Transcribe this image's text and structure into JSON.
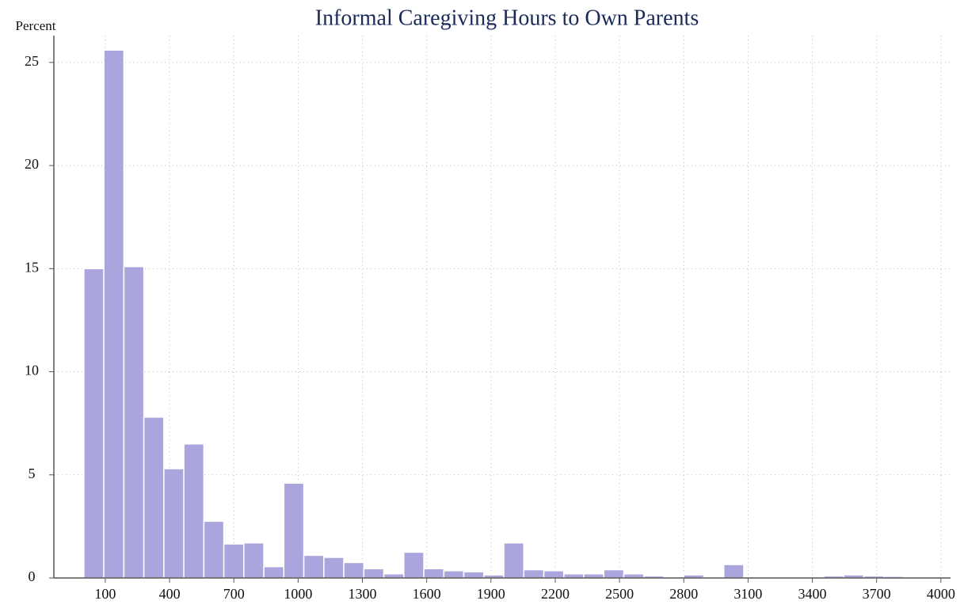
{
  "chart_data": {
    "type": "histogram",
    "title": "Informal Caregiving Hours to Own Parents",
    "y_label": "Percent",
    "bins": [
      0,
      93.3,
      186.7,
      280,
      373.3,
      466.7,
      560,
      653.3,
      746.7,
      840,
      933.3,
      1026.7,
      1120,
      1213.3,
      1306.7,
      1400,
      1493.3,
      1586.7,
      1680,
      1773.3,
      1866.7,
      1960,
      2053.3,
      2146.7,
      2240,
      2333.3,
      2426.7,
      2520,
      2613.3,
      2706.7,
      2800,
      2893.3,
      2986.7,
      3080,
      3173.3,
      3266.7,
      3360,
      3453.3,
      3546.7,
      3640,
      3733.3,
      3826.7
    ],
    "values": [
      15.0,
      25.6,
      15.1,
      7.8,
      5.3,
      6.5,
      2.75,
      1.65,
      1.7,
      0.55,
      4.6,
      1.1,
      1.0,
      0.75,
      0.45,
      0.2,
      1.25,
      0.45,
      0.35,
      0.3,
      0.15,
      1.7,
      0.4,
      0.35,
      0.2,
      0.2,
      0.4,
      0.2,
      0.1,
      0.05,
      0.15,
      0.05,
      0.65,
      0.05,
      0.05,
      0.05,
      0.02,
      0.1,
      0.15,
      0.1,
      0.08
    ],
    "color": "#aaa6dd",
    "xlim": [
      -140,
      4045
    ],
    "ylim": [
      0,
      26.3
    ],
    "xticks": [
      100,
      400,
      700,
      1000,
      1300,
      1600,
      1900,
      2200,
      2500,
      2800,
      3100,
      3400,
      3700,
      4000
    ],
    "yticks": [
      0,
      5,
      10,
      15,
      20,
      25
    ],
    "grid": true
  }
}
